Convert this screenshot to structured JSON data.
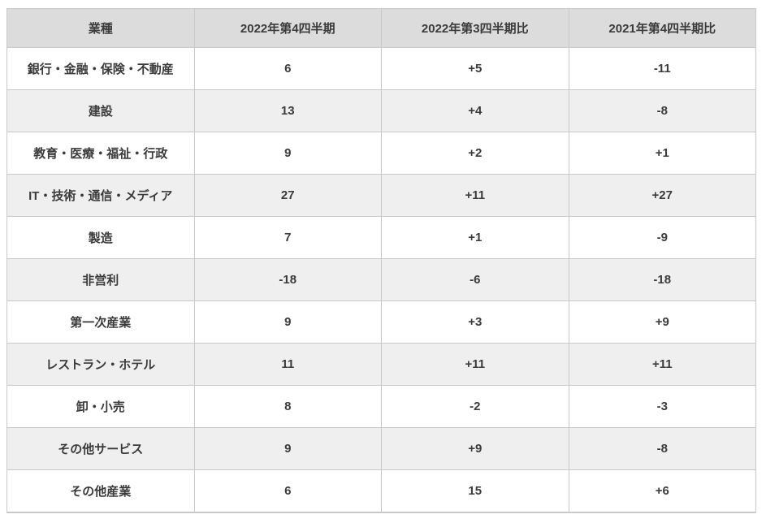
{
  "colors": {
    "header_bg": "#dcdcdc",
    "stripe_bg": "#efefef",
    "row_bg": "#ffffff",
    "border": "#c9c9c9",
    "text": "#3b3b3b"
  },
  "chart_data": {
    "type": "table",
    "title": "",
    "columns": [
      "業種",
      "2022年第4四半期",
      "2022年第3四半期比",
      "2021年第4四半期比"
    ],
    "rows": [
      [
        "銀行・金融・保険・不動産",
        "6",
        "+5",
        "-11"
      ],
      [
        "建設",
        "13",
        "+4",
        "-8"
      ],
      [
        "教育・医療・福祉・行政",
        "9",
        "+2",
        "+1"
      ],
      [
        "IT・技術・通信・メディア",
        "27",
        "+11",
        "+27"
      ],
      [
        "製造",
        "7",
        "+1",
        "-9"
      ],
      [
        "非営利",
        "-18",
        "-6",
        "-18"
      ],
      [
        "第一次産業",
        "9",
        "+3",
        "+9"
      ],
      [
        "レストラン・ホテル",
        "11",
        "+11",
        "+11"
      ],
      [
        "卸・小売",
        "8",
        "-2",
        "-3"
      ],
      [
        "その他サービス",
        "9",
        "+9",
        "-8"
      ],
      [
        "その他産業",
        "6",
        "15",
        "+6"
      ]
    ]
  }
}
